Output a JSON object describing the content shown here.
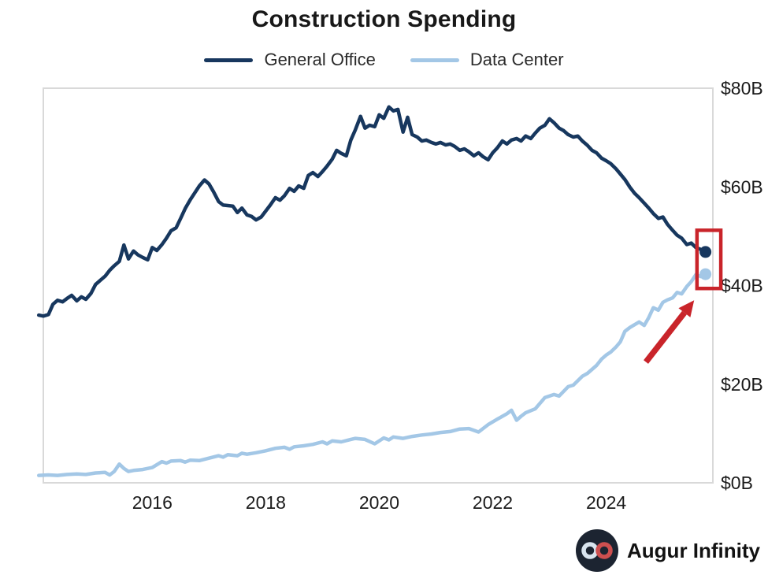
{
  "title": "Construction Spending",
  "legend": [
    {
      "label": "General Office",
      "color": "#17375e"
    },
    {
      "label": "Data Center",
      "color": "#a3c7e6"
    }
  ],
  "branding": {
    "name": "Augur Infinity",
    "logo_icon": "infinity-icon",
    "logo_circle_color": "#1c2431",
    "logo_loop_left_color": "#d9e4ee",
    "logo_loop_right_color": "#cd4f4f"
  },
  "chart_data": {
    "type": "line",
    "title": "Construction Spending",
    "grid": false,
    "legend_position": "top",
    "border_color": "#d9d9d9",
    "x_axis": {
      "range": [
        2014.08,
        2025.88
      ],
      "ticks": [
        {
          "value": 2016,
          "label": "2016"
        },
        {
          "value": 2018,
          "label": "2018"
        },
        {
          "value": 2020,
          "label": "2020"
        },
        {
          "value": 2022,
          "label": "2022"
        },
        {
          "value": 2024,
          "label": "2024"
        }
      ]
    },
    "y_axis": {
      "range": [
        0,
        80
      ],
      "unit": "billions of dollars",
      "tick_values": [
        0,
        20,
        40,
        60,
        80
      ],
      "ticks": [
        "$0B",
        "$20B",
        "$40B",
        "$60B",
        "$80B"
      ],
      "side": "right"
    },
    "series": [
      {
        "name": "General Office",
        "color": "#17375e",
        "width": 4.5,
        "end_marker": true,
        "points": [
          [
            2014.0,
            34.0
          ],
          [
            2014.08,
            33.8
          ],
          [
            2014.17,
            34.1
          ],
          [
            2014.25,
            36.2
          ],
          [
            2014.33,
            37.0
          ],
          [
            2014.42,
            36.7
          ],
          [
            2014.5,
            37.4
          ],
          [
            2014.58,
            38.0
          ],
          [
            2014.67,
            36.9
          ],
          [
            2014.75,
            37.7
          ],
          [
            2014.83,
            37.2
          ],
          [
            2014.92,
            38.4
          ],
          [
            2015.0,
            40.2
          ],
          [
            2015.08,
            41.0
          ],
          [
            2015.17,
            41.9
          ],
          [
            2015.25,
            43.1
          ],
          [
            2015.33,
            44.0
          ],
          [
            2015.42,
            44.9
          ],
          [
            2015.5,
            48.2
          ],
          [
            2015.58,
            45.4
          ],
          [
            2015.67,
            47.0
          ],
          [
            2015.75,
            46.2
          ],
          [
            2015.83,
            45.7
          ],
          [
            2015.92,
            45.2
          ],
          [
            2016.0,
            47.7
          ],
          [
            2016.08,
            47.1
          ],
          [
            2016.17,
            48.3
          ],
          [
            2016.25,
            49.6
          ],
          [
            2016.33,
            51.1
          ],
          [
            2016.42,
            51.7
          ],
          [
            2016.5,
            53.6
          ],
          [
            2016.58,
            55.6
          ],
          [
            2016.67,
            57.4
          ],
          [
            2016.75,
            58.8
          ],
          [
            2016.83,
            60.2
          ],
          [
            2016.92,
            61.4
          ],
          [
            2017.0,
            60.6
          ],
          [
            2017.08,
            59.0
          ],
          [
            2017.17,
            57.0
          ],
          [
            2017.25,
            56.3
          ],
          [
            2017.33,
            56.2
          ],
          [
            2017.42,
            56.1
          ],
          [
            2017.5,
            54.8
          ],
          [
            2017.58,
            55.7
          ],
          [
            2017.67,
            54.3
          ],
          [
            2017.75,
            54.0
          ],
          [
            2017.83,
            53.3
          ],
          [
            2017.92,
            53.9
          ],
          [
            2018.0,
            55.1
          ],
          [
            2018.08,
            56.3
          ],
          [
            2018.17,
            57.8
          ],
          [
            2018.25,
            57.3
          ],
          [
            2018.33,
            58.2
          ],
          [
            2018.42,
            59.7
          ],
          [
            2018.5,
            59.1
          ],
          [
            2018.58,
            60.2
          ],
          [
            2018.67,
            59.7
          ],
          [
            2018.75,
            62.3
          ],
          [
            2018.83,
            62.9
          ],
          [
            2018.92,
            62.1
          ],
          [
            2019.0,
            63.1
          ],
          [
            2019.08,
            64.2
          ],
          [
            2019.17,
            65.6
          ],
          [
            2019.25,
            67.4
          ],
          [
            2019.33,
            66.8
          ],
          [
            2019.42,
            66.3
          ],
          [
            2019.5,
            69.5
          ],
          [
            2019.58,
            71.6
          ],
          [
            2019.67,
            74.3
          ],
          [
            2019.75,
            71.9
          ],
          [
            2019.83,
            72.5
          ],
          [
            2019.92,
            72.2
          ],
          [
            2020.0,
            74.6
          ],
          [
            2020.08,
            73.9
          ],
          [
            2020.17,
            76.2
          ],
          [
            2020.25,
            75.4
          ],
          [
            2020.33,
            75.7
          ],
          [
            2020.42,
            71.1
          ],
          [
            2020.5,
            74.1
          ],
          [
            2020.58,
            70.6
          ],
          [
            2020.67,
            70.1
          ],
          [
            2020.75,
            69.3
          ],
          [
            2020.83,
            69.5
          ],
          [
            2020.92,
            69.0
          ],
          [
            2021.0,
            68.7
          ],
          [
            2021.08,
            69.0
          ],
          [
            2021.17,
            68.5
          ],
          [
            2021.25,
            68.7
          ],
          [
            2021.33,
            68.2
          ],
          [
            2021.42,
            67.4
          ],
          [
            2021.5,
            67.7
          ],
          [
            2021.58,
            67.1
          ],
          [
            2021.67,
            66.3
          ],
          [
            2021.75,
            66.9
          ],
          [
            2021.83,
            66.1
          ],
          [
            2021.92,
            65.5
          ],
          [
            2022.0,
            66.9
          ],
          [
            2022.08,
            67.9
          ],
          [
            2022.17,
            69.3
          ],
          [
            2022.25,
            68.7
          ],
          [
            2022.33,
            69.5
          ],
          [
            2022.42,
            69.8
          ],
          [
            2022.5,
            69.3
          ],
          [
            2022.58,
            70.3
          ],
          [
            2022.67,
            69.8
          ],
          [
            2022.75,
            70.9
          ],
          [
            2022.83,
            71.9
          ],
          [
            2022.92,
            72.5
          ],
          [
            2023.0,
            73.8
          ],
          [
            2023.08,
            73.0
          ],
          [
            2023.17,
            71.9
          ],
          [
            2023.25,
            71.4
          ],
          [
            2023.33,
            70.6
          ],
          [
            2023.42,
            70.1
          ],
          [
            2023.5,
            70.3
          ],
          [
            2023.58,
            69.3
          ],
          [
            2023.67,
            68.4
          ],
          [
            2023.75,
            67.4
          ],
          [
            2023.83,
            66.9
          ],
          [
            2023.92,
            65.8
          ],
          [
            2024.0,
            65.3
          ],
          [
            2024.08,
            64.7
          ],
          [
            2024.17,
            63.7
          ],
          [
            2024.25,
            62.6
          ],
          [
            2024.33,
            61.5
          ],
          [
            2024.42,
            59.9
          ],
          [
            2024.5,
            58.7
          ],
          [
            2024.58,
            57.8
          ],
          [
            2024.67,
            56.7
          ],
          [
            2024.75,
            55.7
          ],
          [
            2024.83,
            54.6
          ],
          [
            2024.92,
            53.6
          ],
          [
            2025.0,
            53.9
          ],
          [
            2025.08,
            52.4
          ],
          [
            2025.17,
            51.2
          ],
          [
            2025.25,
            50.2
          ],
          [
            2025.33,
            49.6
          ],
          [
            2025.42,
            48.3
          ],
          [
            2025.5,
            48.6
          ],
          [
            2025.58,
            47.7
          ],
          [
            2025.67,
            47.3
          ],
          [
            2025.75,
            46.8
          ]
        ]
      },
      {
        "name": "Data Center",
        "color": "#a3c7e6",
        "width": 4.5,
        "end_marker": true,
        "points": [
          [
            2014.0,
            1.5
          ],
          [
            2014.17,
            1.6
          ],
          [
            2014.33,
            1.5
          ],
          [
            2014.5,
            1.7
          ],
          [
            2014.67,
            1.8
          ],
          [
            2014.83,
            1.7
          ],
          [
            2015.0,
            2.0
          ],
          [
            2015.17,
            2.1
          ],
          [
            2015.25,
            1.6
          ],
          [
            2015.33,
            2.3
          ],
          [
            2015.42,
            3.8
          ],
          [
            2015.5,
            2.9
          ],
          [
            2015.58,
            2.3
          ],
          [
            2015.67,
            2.5
          ],
          [
            2015.83,
            2.7
          ],
          [
            2016.0,
            3.1
          ],
          [
            2016.17,
            4.3
          ],
          [
            2016.25,
            4.0
          ],
          [
            2016.33,
            4.4
          ],
          [
            2016.5,
            4.5
          ],
          [
            2016.58,
            4.2
          ],
          [
            2016.67,
            4.6
          ],
          [
            2016.83,
            4.5
          ],
          [
            2017.0,
            5.0
          ],
          [
            2017.17,
            5.5
          ],
          [
            2017.25,
            5.2
          ],
          [
            2017.33,
            5.7
          ],
          [
            2017.5,
            5.5
          ],
          [
            2017.58,
            6.0
          ],
          [
            2017.67,
            5.8
          ],
          [
            2017.83,
            6.1
          ],
          [
            2018.0,
            6.5
          ],
          [
            2018.17,
            7.0
          ],
          [
            2018.33,
            7.2
          ],
          [
            2018.42,
            6.8
          ],
          [
            2018.5,
            7.3
          ],
          [
            2018.67,
            7.5
          ],
          [
            2018.83,
            7.8
          ],
          [
            2019.0,
            8.3
          ],
          [
            2019.08,
            7.9
          ],
          [
            2019.17,
            8.5
          ],
          [
            2019.33,
            8.3
          ],
          [
            2019.5,
            8.8
          ],
          [
            2019.58,
            9.0
          ],
          [
            2019.75,
            8.8
          ],
          [
            2019.92,
            7.9
          ],
          [
            2020.08,
            9.1
          ],
          [
            2020.17,
            8.7
          ],
          [
            2020.25,
            9.3
          ],
          [
            2020.42,
            9.0
          ],
          [
            2020.58,
            9.4
          ],
          [
            2020.75,
            9.7
          ],
          [
            2020.92,
            9.9
          ],
          [
            2021.08,
            10.2
          ],
          [
            2021.25,
            10.4
          ],
          [
            2021.42,
            10.9
          ],
          [
            2021.58,
            11.0
          ],
          [
            2021.75,
            10.3
          ],
          [
            2021.92,
            11.8
          ],
          [
            2022.08,
            12.9
          ],
          [
            2022.25,
            14.0
          ],
          [
            2022.33,
            14.7
          ],
          [
            2022.42,
            12.7
          ],
          [
            2022.5,
            13.5
          ],
          [
            2022.58,
            14.2
          ],
          [
            2022.75,
            15.0
          ],
          [
            2022.92,
            17.3
          ],
          [
            2023.08,
            17.9
          ],
          [
            2023.17,
            17.6
          ],
          [
            2023.33,
            19.5
          ],
          [
            2023.42,
            19.8
          ],
          [
            2023.58,
            21.6
          ],
          [
            2023.67,
            22.2
          ],
          [
            2023.83,
            23.8
          ],
          [
            2023.92,
            25.1
          ],
          [
            2024.0,
            25.9
          ],
          [
            2024.08,
            26.5
          ],
          [
            2024.17,
            27.5
          ],
          [
            2024.25,
            28.6
          ],
          [
            2024.33,
            30.7
          ],
          [
            2024.42,
            31.5
          ],
          [
            2024.58,
            32.6
          ],
          [
            2024.67,
            31.9
          ],
          [
            2024.75,
            33.5
          ],
          [
            2024.83,
            35.5
          ],
          [
            2024.92,
            35.0
          ],
          [
            2025.0,
            36.6
          ],
          [
            2025.08,
            37.1
          ],
          [
            2025.17,
            37.5
          ],
          [
            2025.25,
            38.6
          ],
          [
            2025.33,
            38.3
          ],
          [
            2025.42,
            39.8
          ],
          [
            2025.5,
            40.8
          ],
          [
            2025.58,
            42.2
          ],
          [
            2025.67,
            41.8
          ],
          [
            2025.75,
            42.3
          ]
        ]
      }
    ],
    "annotations": {
      "highlight_box": {
        "shape": "rect",
        "color": "#c9242a",
        "stroke_width": 4.5,
        "x_range": [
          2025.6,
          2026.02
        ],
        "y_range": [
          39.4,
          51.2
        ]
      },
      "arrow": {
        "shape": "arrow",
        "color": "#c9242a",
        "from": [
          2024.7,
          24.5
        ],
        "to": [
          2025.55,
          37.0
        ]
      }
    }
  }
}
